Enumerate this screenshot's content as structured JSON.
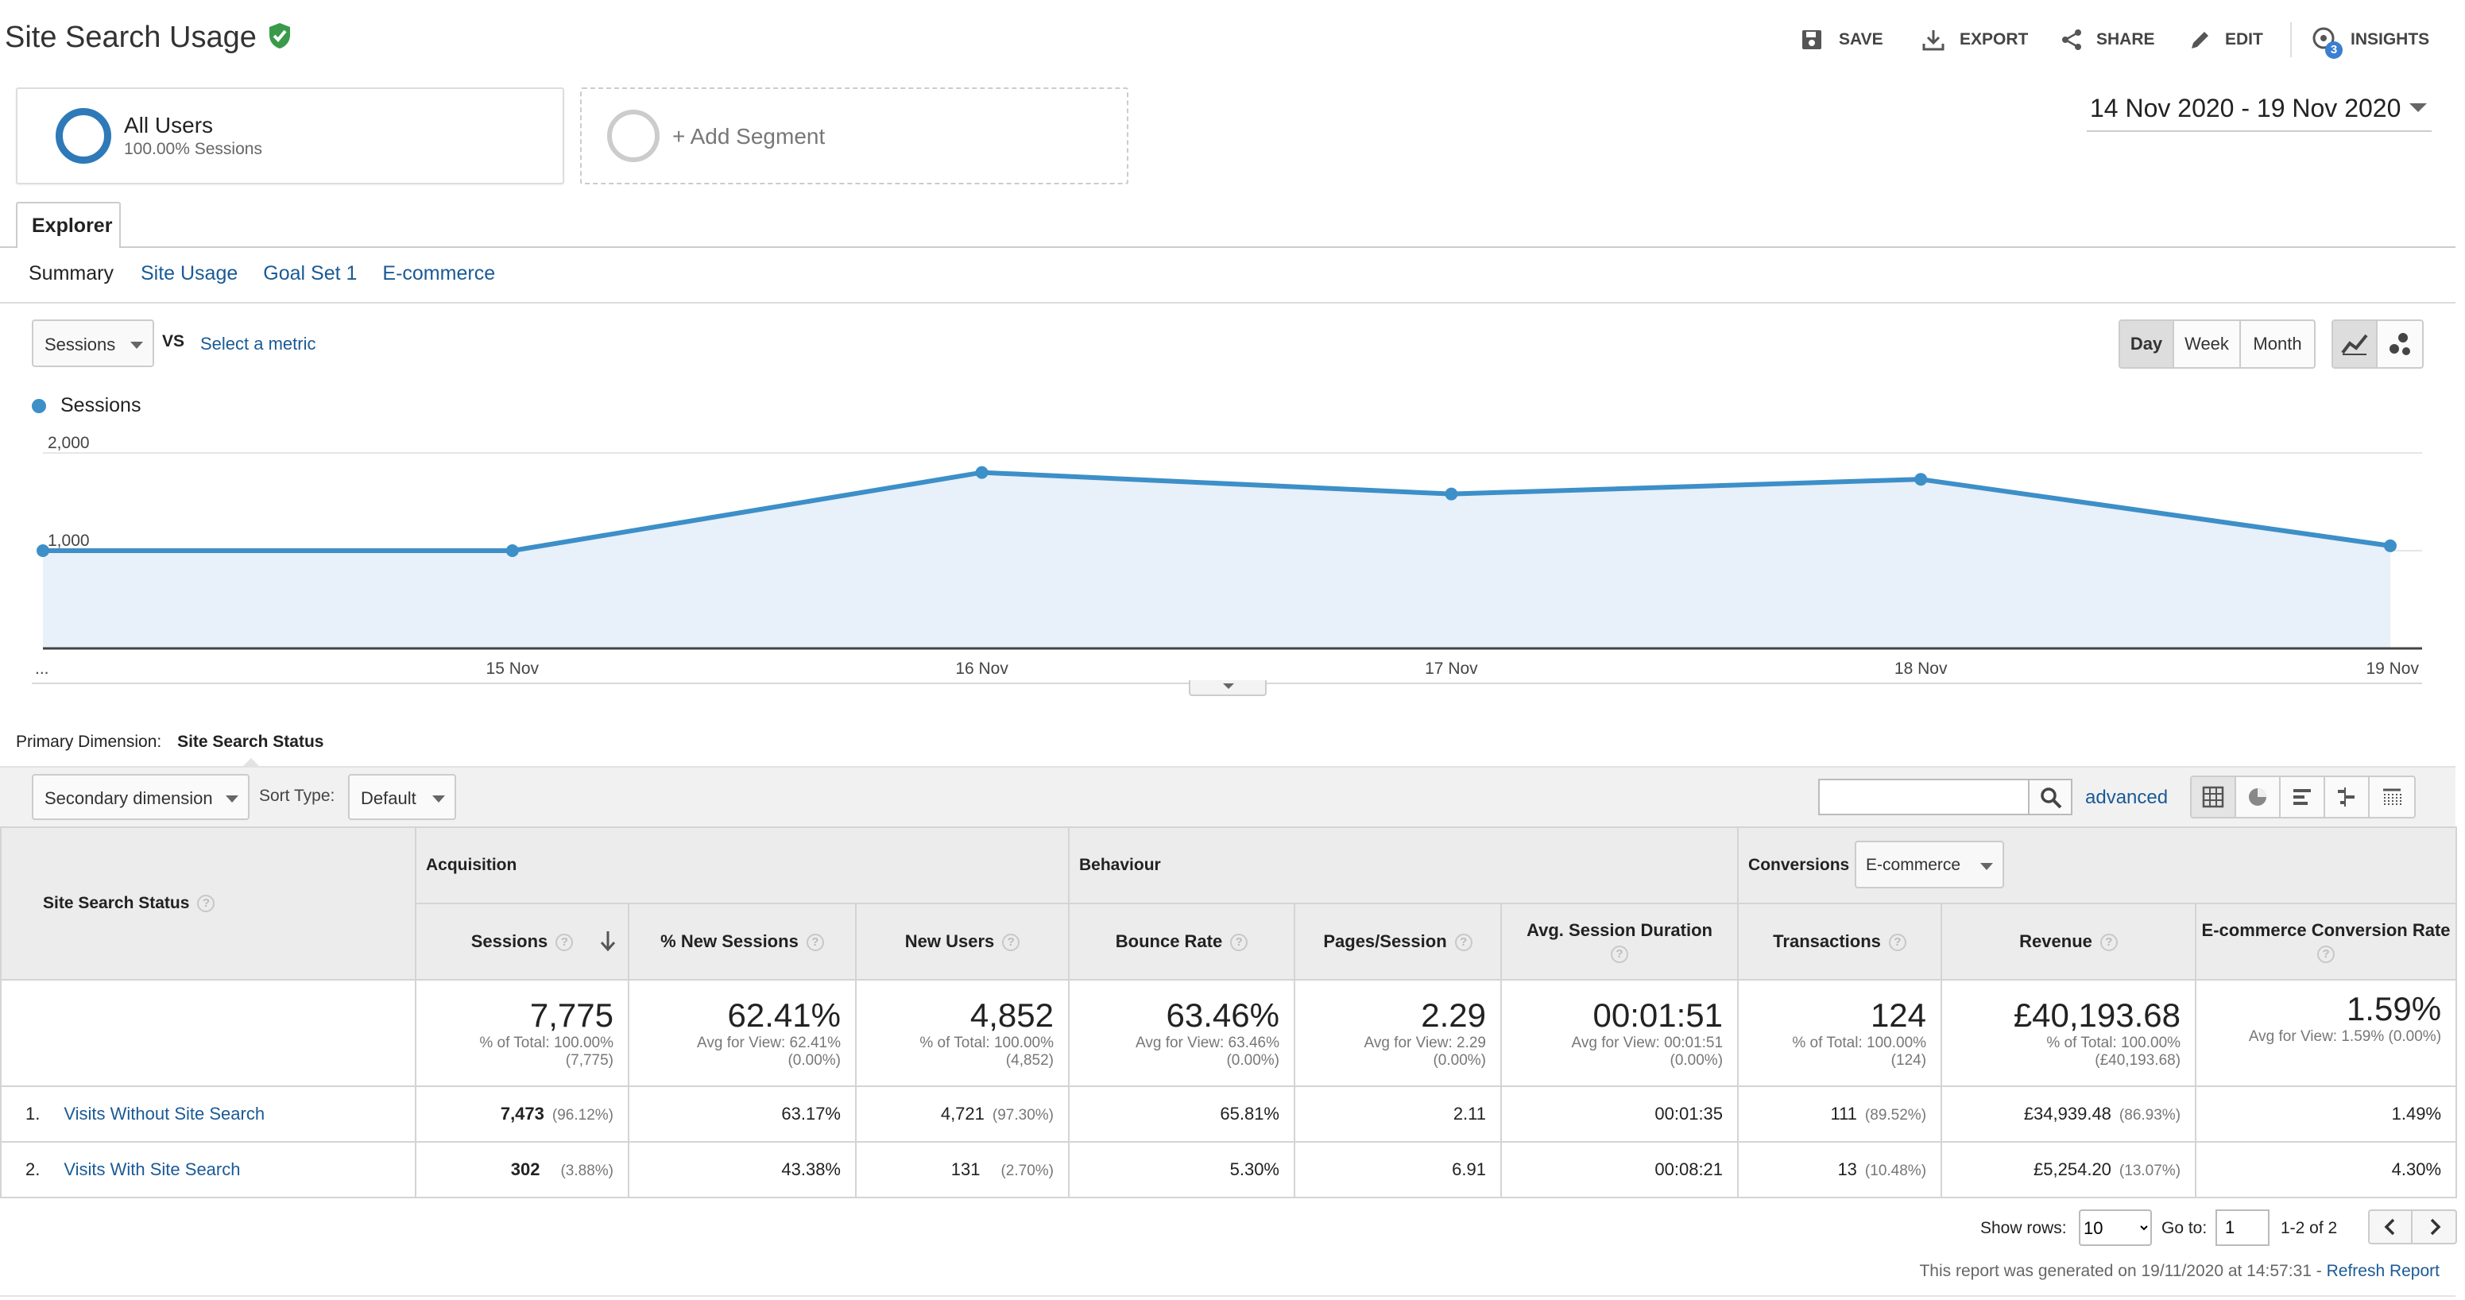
{
  "header": {
    "title": "Site Search Usage",
    "actions": {
      "save": "SAVE",
      "export": "EXPORT",
      "share": "SHARE",
      "edit": "EDIT",
      "insights": "INSIGHTS",
      "insights_badge": "3"
    }
  },
  "segments": {
    "all_users_label": "All Users",
    "all_users_sub": "100.00% Sessions",
    "add_segment": "+ Add Segment"
  },
  "date_range": "14 Nov 2020 - 19 Nov 2020",
  "explorer_tab": "Explorer",
  "subtabs": {
    "summary": "Summary",
    "site_usage": "Site Usage",
    "goal_set": "Goal Set 1",
    "ecommerce": "E-commerce"
  },
  "metric_controls": {
    "metric": "Sessions",
    "vs": "VS",
    "select_metric": "Select a metric",
    "day": "Day",
    "week": "Week",
    "month": "Month"
  },
  "chart_data": {
    "type": "area",
    "series": [
      {
        "name": "Sessions",
        "values": [
          1000,
          1000,
          1800,
          1580,
          1730,
          1050
        ]
      }
    ],
    "x": [
      "...",
      "15 Nov",
      "16 Nov",
      "17 Nov",
      "18 Nov",
      "19 Nov"
    ],
    "y_ticks": [
      "2,000",
      "1,000"
    ],
    "ylim": [
      0,
      2000
    ],
    "color": "#3d8fc8",
    "fill": "#e8f0f9"
  },
  "table_controls": {
    "primary_dim_label": "Primary Dimension:",
    "primary_dim_value": "Site Search Status",
    "secondary_dim": "Secondary dimension",
    "sort_type_label": "Sort Type:",
    "sort_type_value": "Default",
    "search_value": "",
    "advanced": "advanced"
  },
  "table": {
    "dim_header": "Site Search Status",
    "groups": {
      "acquisition": "Acquisition",
      "behaviour": "Behaviour",
      "conversions": "Conversions",
      "conversions_select": "E-commerce"
    },
    "columns": {
      "sessions": "Sessions",
      "new_sessions": "% New Sessions",
      "new_users": "New Users",
      "bounce": "Bounce Rate",
      "pages": "Pages/Session",
      "duration": "Avg. Session Duration",
      "transactions": "Transactions",
      "revenue": "Revenue",
      "conv_rate": "E-commerce Conversion Rate"
    },
    "totals": {
      "sessions": "7,775",
      "sessions_sub1": "% of Total: 100.00%",
      "sessions_sub2": "(7,775)",
      "new_sessions": "62.41%",
      "new_sessions_sub1": "Avg for View: 62.41%",
      "new_sessions_sub2": "(0.00%)",
      "new_users": "4,852",
      "new_users_sub1": "% of Total: 100.00%",
      "new_users_sub2": "(4,852)",
      "bounce": "63.46%",
      "bounce_sub1": "Avg for View: 63.46%",
      "bounce_sub2": "(0.00%)",
      "pages": "2.29",
      "pages_sub1": "Avg for View: 2.29",
      "pages_sub2": "(0.00%)",
      "duration": "00:01:51",
      "duration_sub1": "Avg for View: 00:01:51",
      "duration_sub2": "(0.00%)",
      "transactions": "124",
      "transactions_sub1": "% of Total: 100.00%",
      "transactions_sub2": "(124)",
      "revenue": "£40,193.68",
      "revenue_sub1": "% of Total: 100.00%",
      "revenue_sub2": "(£40,193.68)",
      "conv_rate": "1.59%",
      "conv_rate_sub1": "Avg for View: 1.59% (0.00%)"
    },
    "rows": [
      {
        "num": "1.",
        "name": "Visits Without Site Search",
        "sessions": "7,473",
        "sessions_pct": "(96.12%)",
        "new_sessions": "63.17%",
        "new_users": "4,721",
        "new_users_pct": "(97.30%)",
        "bounce": "65.81%",
        "pages": "2.11",
        "duration": "00:01:35",
        "transactions": "111",
        "transactions_pct": "(89.52%)",
        "revenue": "£34,939.48",
        "revenue_pct": "(86.93%)",
        "conv_rate": "1.49%"
      },
      {
        "num": "2.",
        "name": "Visits With Site Search",
        "sessions": "302",
        "sessions_pct": "(3.88%)",
        "new_sessions": "43.38%",
        "new_users": "131",
        "new_users_pct": "(2.70%)",
        "bounce": "5.30%",
        "pages": "6.91",
        "duration": "00:08:21",
        "transactions": "13",
        "transactions_pct": "(10.48%)",
        "revenue": "£5,254.20",
        "revenue_pct": "(13.07%)",
        "conv_rate": "4.30%"
      }
    ]
  },
  "pagination": {
    "show_rows_label": "Show rows:",
    "show_rows_value": "10",
    "goto_label": "Go to:",
    "goto_value": "1",
    "range": "1-2 of 2"
  },
  "footer": {
    "generated": "This report was generated on 19/11/2020 at 14:57:31 - ",
    "refresh": "Refresh Report"
  }
}
